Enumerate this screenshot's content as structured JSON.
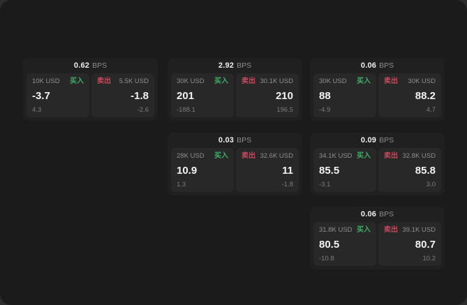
{
  "labels": {
    "bps": "BPS",
    "buy": "买入",
    "sell": "卖出"
  },
  "colors": {
    "buy": "#3fae6a",
    "sell": "#c9485b",
    "panel_bg": "#282828",
    "card_bg": "#202020",
    "screen_bg": "#1b1b1b"
  },
  "cards": [
    {
      "bps": "0.62",
      "buy": {
        "size": "10K USD",
        "price": "-3.7",
        "delta": "4.3"
      },
      "sell": {
        "size": "5.5K USD",
        "price": "-1.8",
        "delta": "-2.6"
      }
    },
    {
      "bps": "2.92",
      "buy": {
        "size": "30K USD",
        "price": "201",
        "delta": "-188.1"
      },
      "sell": {
        "size": "30.1K USD",
        "price": "210",
        "delta": "196.5"
      }
    },
    {
      "bps": "0.06",
      "buy": {
        "size": "30K USD",
        "price": "88",
        "delta": "-4.9"
      },
      "sell": {
        "size": "30K USD",
        "price": "88.2",
        "delta": "4.7"
      }
    },
    {
      "bps": "0.03",
      "buy": {
        "size": "28K USD",
        "price": "10.9",
        "delta": "1.3"
      },
      "sell": {
        "size": "32.6K USD",
        "price": "11",
        "delta": "-1.8"
      }
    },
    {
      "bps": "0.09",
      "buy": {
        "size": "34.1K USD",
        "price": "85.5",
        "delta": "-3.1"
      },
      "sell": {
        "size": "32.8K USD",
        "price": "85.8",
        "delta": "3.0"
      }
    },
    {
      "bps": "0.06",
      "buy": {
        "size": "31.8K USD",
        "price": "80.5",
        "delta": "-10.8"
      },
      "sell": {
        "size": "39.1K USD",
        "price": "80.7",
        "delta": "10.2"
      }
    }
  ]
}
